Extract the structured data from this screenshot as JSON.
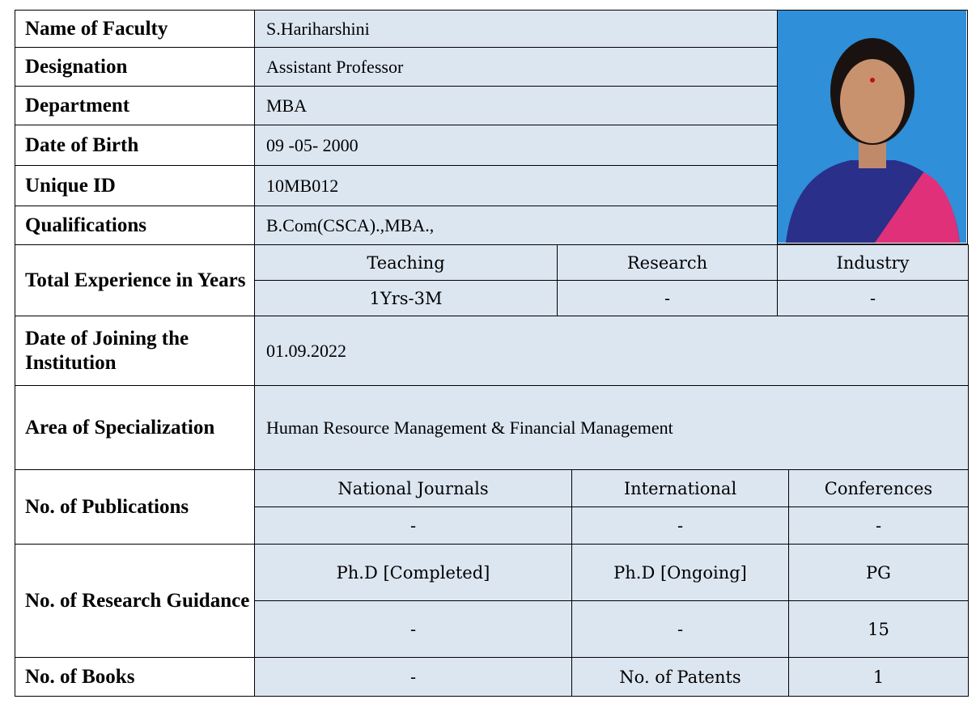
{
  "rows": [
    {
      "label": "Name of Faculty",
      "value": "S.Hariharshini"
    },
    {
      "label": "Designation",
      "value": "Assistant Professor"
    },
    {
      "label": "Department",
      "value": "MBA"
    },
    {
      "label": "Date of Birth",
      "value": "09 -05- 2000"
    },
    {
      "label": "Unique ID",
      "value": "10MB012"
    },
    {
      "label": "Qualifications",
      "value": "B.Com(CSCA).,MBA.,"
    }
  ],
  "experience": {
    "label": "Total Experience in Years",
    "headers": [
      "Teaching",
      "Research",
      "Industry"
    ],
    "values": [
      "1Yrs-3M",
      "-",
      "-"
    ]
  },
  "joining": {
    "label": "Date of Joining the Institution",
    "value": "01.09.2022"
  },
  "specialization": {
    "label": "Area of Specialization",
    "value": "Human Resource Management & Financial Management"
  },
  "publications": {
    "label": "No. of Publications",
    "headers": [
      "National Journals",
      "International",
      "Conferences"
    ],
    "values": [
      "-",
      "-",
      "-"
    ]
  },
  "guidance": {
    "label": "No. of Research Guidance",
    "headers": [
      "Ph.D [Completed]",
      "Ph.D [Ongoing]",
      "PG"
    ],
    "values": [
      "-",
      "-",
      15
    ]
  },
  "books": {
    "label": "No. of Books",
    "value": "-",
    "patents_label": "No. of Patents",
    "patents": 1
  }
}
